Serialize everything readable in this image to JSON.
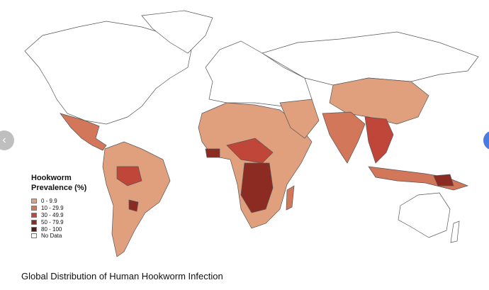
{
  "legend": {
    "title_lines": [
      "Hookworm",
      "Prevalence (%)"
    ],
    "items": [
      {
        "label": "0 - 9.9",
        "color": "#e0a07e"
      },
      {
        "label": "10 - 29.9",
        "color": "#d3775a"
      },
      {
        "label": "30 - 49.9",
        "color": "#c0463a"
      },
      {
        "label": "50 - 79.9",
        "color": "#8c2b22"
      },
      {
        "label": "80 - 100",
        "color": "#5a1a14"
      },
      {
        "label": "No Data",
        "color": "#ffffff"
      }
    ]
  },
  "caption": "Global Distribution of Human Hookworm Infection"
}
